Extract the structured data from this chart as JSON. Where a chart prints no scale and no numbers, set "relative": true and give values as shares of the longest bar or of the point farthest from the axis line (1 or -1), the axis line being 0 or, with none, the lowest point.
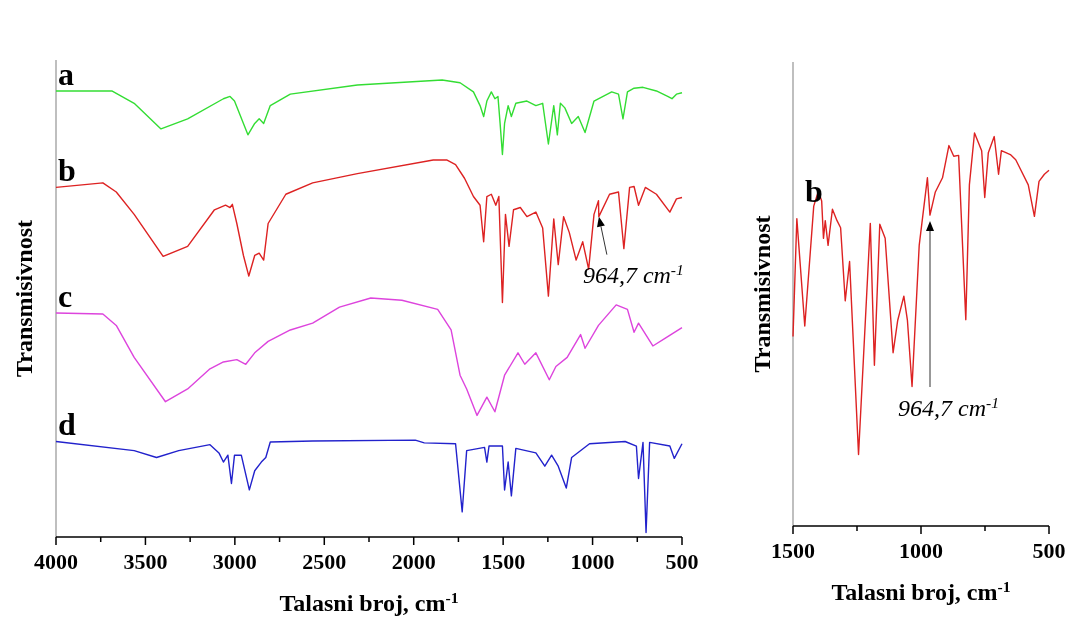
{
  "chart_data": [
    {
      "type": "line",
      "relative": true,
      "tick_labels": "x",
      "xlabel": "Talasni broj, cm$^{-1}$",
      "ylabel": "Transmisivnost",
      "xlim": [
        4000,
        500
      ],
      "xticks": [
        4000,
        {
          "value": 3750,
          "label": null
        },
        3500,
        {
          "value": 3250,
          "label": null
        },
        3000,
        {
          "value": 2750,
          "label": null
        },
        2500,
        {
          "value": 2250,
          "label": null
        },
        2000,
        {
          "value": 1750,
          "label": null
        },
        1500,
        {
          "value": 1250,
          "label": null
        },
        1000,
        {
          "value": 750,
          "label": null
        },
        500
      ],
      "series": [
        {
          "name": "a",
          "color": "#33dd33",
          "x": [
            4000,
            3688,
            3563,
            3413,
            3264,
            3064,
            3027,
            3002,
            2952,
            2927,
            2889,
            2864,
            2839,
            2802,
            2690,
            2315,
            1841,
            1741,
            1666,
            1629,
            1609,
            1591,
            1566,
            1546,
            1529,
            1517,
            1504,
            1492,
            1472,
            1454,
            1429,
            1367,
            1317,
            1279,
            1247,
            1217,
            1197,
            1180,
            1155,
            1117,
            1080,
            1042,
            992,
            893,
            855,
            830,
            805,
            768,
            718,
            643,
            580,
            556,
            531,
            500
          ],
          "values": [
            0.976,
            0.976,
            0.949,
            0.893,
            0.915,
            0.959,
            0.964,
            0.954,
            0.905,
            0.88,
            0.905,
            0.915,
            0.905,
            0.944,
            0.969,
            0.989,
            1.0,
            0.994,
            0.974,
            0.944,
            0.92,
            0.954,
            0.974,
            0.959,
            0.964,
            0.905,
            0.837,
            0.905,
            0.944,
            0.92,
            0.949,
            0.954,
            0.944,
            0.949,
            0.86,
            0.944,
            0.88,
            0.949,
            0.939,
            0.905,
            0.92,
            0.885,
            0.954,
            0.974,
            0.969,
            0.915,
            0.974,
            0.982,
            0.984,
            0.976,
            0.964,
            0.959,
            0.969,
            0.972
          ]
        },
        {
          "name": "b",
          "color": "#dd2222",
          "x": [
            4000,
            3738,
            3663,
            3563,
            3401,
            3264,
            3114,
            3052,
            3027,
            3014,
            2989,
            2952,
            2922,
            2889,
            2864,
            2839,
            2814,
            2715,
            2565,
            2315,
            1891,
            1816,
            1766,
            1716,
            1666,
            1629,
            1609,
            1591,
            1566,
            1541,
            1524,
            1504,
            1487,
            1467,
            1442,
            1404,
            1367,
            1317,
            1279,
            1247,
            1217,
            1192,
            1162,
            1130,
            1092,
            1055,
            1022,
            992,
            967,
            965,
            905,
            855,
            825,
            793,
            768,
            743,
            705,
            643,
            568,
            531,
            500
          ],
          "values": [
            0.765,
            0.775,
            0.755,
            0.706,
            0.614,
            0.636,
            0.716,
            0.726,
            0.721,
            0.728,
            0.686,
            0.616,
            0.571,
            0.616,
            0.621,
            0.606,
            0.686,
            0.75,
            0.775,
            0.795,
            0.825,
            0.825,
            0.815,
            0.785,
            0.745,
            0.726,
            0.646,
            0.745,
            0.75,
            0.726,
            0.745,
            0.513,
            0.706,
            0.636,
            0.716,
            0.721,
            0.701,
            0.711,
            0.676,
            0.527,
            0.696,
            0.596,
            0.701,
            0.666,
            0.606,
            0.646,
            0.586,
            0.706,
            0.736,
            0.701,
            0.75,
            0.755,
            0.631,
            0.765,
            0.767,
            0.726,
            0.765,
            0.75,
            0.711,
            0.74,
            0.743
          ]
        },
        {
          "name": "c",
          "color": "#dd44dd",
          "x": [
            4000,
            3738,
            3663,
            3563,
            3388,
            3264,
            3139,
            3064,
            2989,
            2939,
            2889,
            2814,
            2690,
            2565,
            2415,
            2240,
            2066,
            1866,
            1791,
            1741,
            1704,
            1646,
            1591,
            1546,
            1492,
            1417,
            1379,
            1317,
            1242,
            1205,
            1142,
            1067,
            1042,
            967,
            868,
            805,
            768,
            743,
            663,
            593,
            500
          ],
          "values": [
            0.49,
            0.488,
            0.463,
            0.393,
            0.296,
            0.324,
            0.368,
            0.383,
            0.388,
            0.378,
            0.403,
            0.428,
            0.453,
            0.468,
            0.503,
            0.523,
            0.518,
            0.498,
            0.453,
            0.354,
            0.324,
            0.266,
            0.306,
            0.274,
            0.354,
            0.403,
            0.378,
            0.403,
            0.344,
            0.373,
            0.393,
            0.443,
            0.413,
            0.463,
            0.508,
            0.498,
            0.448,
            0.468,
            0.418,
            0.435,
            0.458
          ]
        },
        {
          "name": "d",
          "color": "#2222cc",
          "x": [
            4000,
            3563,
            3438,
            3314,
            3139,
            3089,
            3064,
            3039,
            3019,
            3002,
            2964,
            2919,
            2889,
            2852,
            2827,
            2802,
            2565,
            1991,
            1941,
            1766,
            1729,
            1704,
            1604,
            1591,
            1579,
            1504,
            1492,
            1472,
            1454,
            1429,
            1317,
            1267,
            1229,
            1192,
            1147,
            1117,
            1017,
            818,
            755,
            743,
            718,
            701,
            681,
            568,
            543,
            500
          ],
          "values": [
            0.209,
            0.189,
            0.174,
            0.189,
            0.202,
            0.184,
            0.164,
            0.179,
            0.117,
            0.179,
            0.179,
            0.103,
            0.145,
            0.164,
            0.174,
            0.208,
            0.21,
            0.212,
            0.206,
            0.204,
            0.055,
            0.189,
            0.196,
            0.164,
            0.199,
            0.199,
            0.103,
            0.164,
            0.09,
            0.194,
            0.184,
            0.155,
            0.179,
            0.155,
            0.107,
            0.174,
            0.204,
            0.209,
            0.199,
            0.128,
            0.207,
            0.01,
            0.207,
            0.199,
            0.172,
            0.204
          ]
        }
      ],
      "annotations": [
        {
          "text": "964,7 cm$^{-1}$",
          "x": 964.7,
          "y": 0.701
        }
      ]
    },
    {
      "type": "line",
      "relative": true,
      "tick_labels": "x",
      "xlabel": "Talasni broj, cm$^{-1}$",
      "ylabel": "Transmisivnost",
      "xlim": [
        1500,
        500
      ],
      "xticks": [
        1500,
        {
          "value": 1250,
          "label": null
        },
        1000,
        {
          "value": 750,
          "label": null
        },
        500
      ],
      "series": [
        {
          "name": "b",
          "color": "#dd2222",
          "x": [
            1500,
            1485,
            1454,
            1419,
            1401,
            1388,
            1381,
            1374,
            1363,
            1346,
            1328,
            1314,
            1296,
            1279,
            1244,
            1198,
            1182,
            1161,
            1140,
            1109,
            1091,
            1067,
            1053,
            1035,
            1007,
            975,
            965,
            944,
            916,
            891,
            872,
            853,
            825,
            811,
            791,
            763,
            751,
            737,
            714,
            697,
            686,
            651,
            630,
            581,
            557,
            539,
            518,
            500
          ],
          "values": [
            0.482,
            0.782,
            0.509,
            0.814,
            0.852,
            0.827,
            0.732,
            0.777,
            0.714,
            0.806,
            0.777,
            0.759,
            0.573,
            0.673,
            0.182,
            0.77,
            0.409,
            0.768,
            0.732,
            0.441,
            0.523,
            0.585,
            0.523,
            0.355,
            0.714,
            0.886,
            0.791,
            0.85,
            0.886,
            0.968,
            0.941,
            0.943,
            0.525,
            0.868,
            1.0,
            0.955,
            0.836,
            0.95,
            0.991,
            0.895,
            0.955,
            0.945,
            0.932,
            0.868,
            0.788,
            0.877,
            0.895,
            0.905
          ]
        }
      ],
      "annotations": [
        "964,7 cm$^{-1}$"
      ]
    }
  ]
}
